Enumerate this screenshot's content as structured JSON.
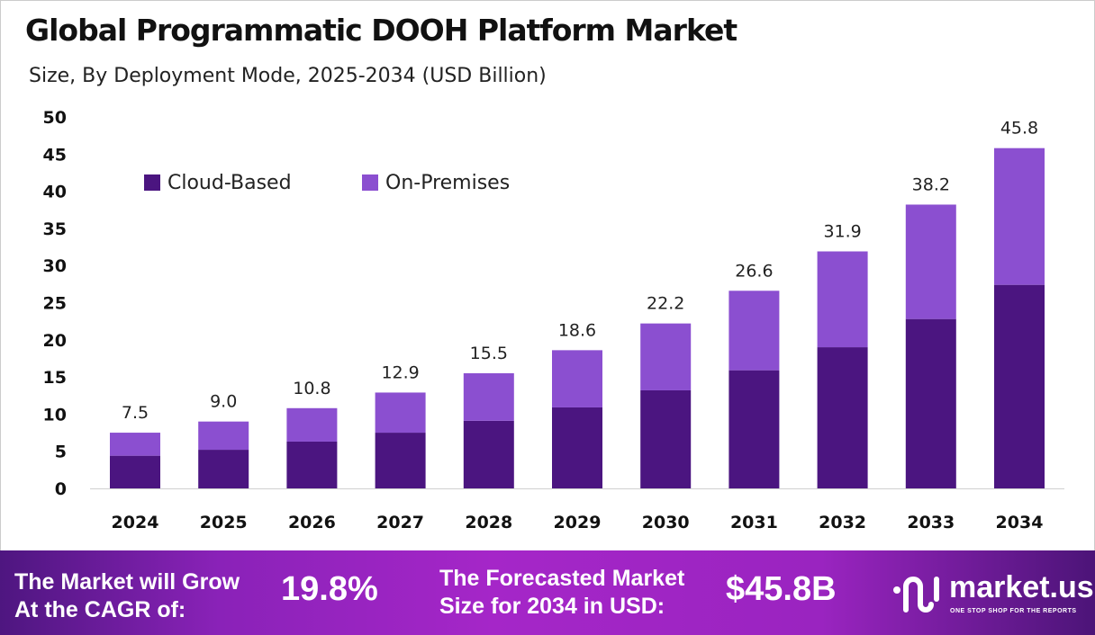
{
  "chart_data": {
    "type": "bar",
    "stacked": true,
    "title": "Global Programmatic DOOH Platform Market",
    "subtitle": "Size, By Deployment Mode, 2025-2034 (USD Billion)",
    "categories": [
      "2024",
      "2025",
      "2026",
      "2027",
      "2028",
      "2029",
      "2030",
      "2031",
      "2032",
      "2033",
      "2034"
    ],
    "series": [
      {
        "name": "Cloud-Based",
        "color": "#4b1580",
        "values": [
          4.4,
          5.2,
          6.3,
          7.5,
          9.1,
          10.9,
          13.2,
          15.9,
          19.0,
          22.8,
          27.4
        ]
      },
      {
        "name": "On-Premises",
        "color": "#8b4fd0",
        "values": [
          3.1,
          3.8,
          4.5,
          5.4,
          6.4,
          7.7,
          9.0,
          10.7,
          12.9,
          15.4,
          18.4
        ]
      }
    ],
    "totals": [
      "7.5",
      "9.0",
      "10.8",
      "12.9",
      "15.5",
      "18.6",
      "22.2",
      "26.6",
      "31.9",
      "38.2",
      "45.8"
    ],
    "ylim": [
      0,
      50
    ],
    "yticks": [
      0,
      5,
      10,
      15,
      20,
      25,
      30,
      35,
      40,
      45,
      50
    ],
    "grid": false,
    "legend_position": "top-left"
  },
  "banner": {
    "cagr_label": "The Market will Grow At the CAGR of:",
    "cagr_line1": "The Market will Grow",
    "cagr_line2": "At the CAGR of:",
    "cagr_value": "19.8%",
    "forecast_line1": "The Forecasted Market",
    "forecast_line2": "Size for 2034 in USD:",
    "forecast_value": "$45.8B",
    "logo_name": "market.us",
    "logo_tagline": "ONE STOP SHOP FOR THE REPORTS"
  }
}
